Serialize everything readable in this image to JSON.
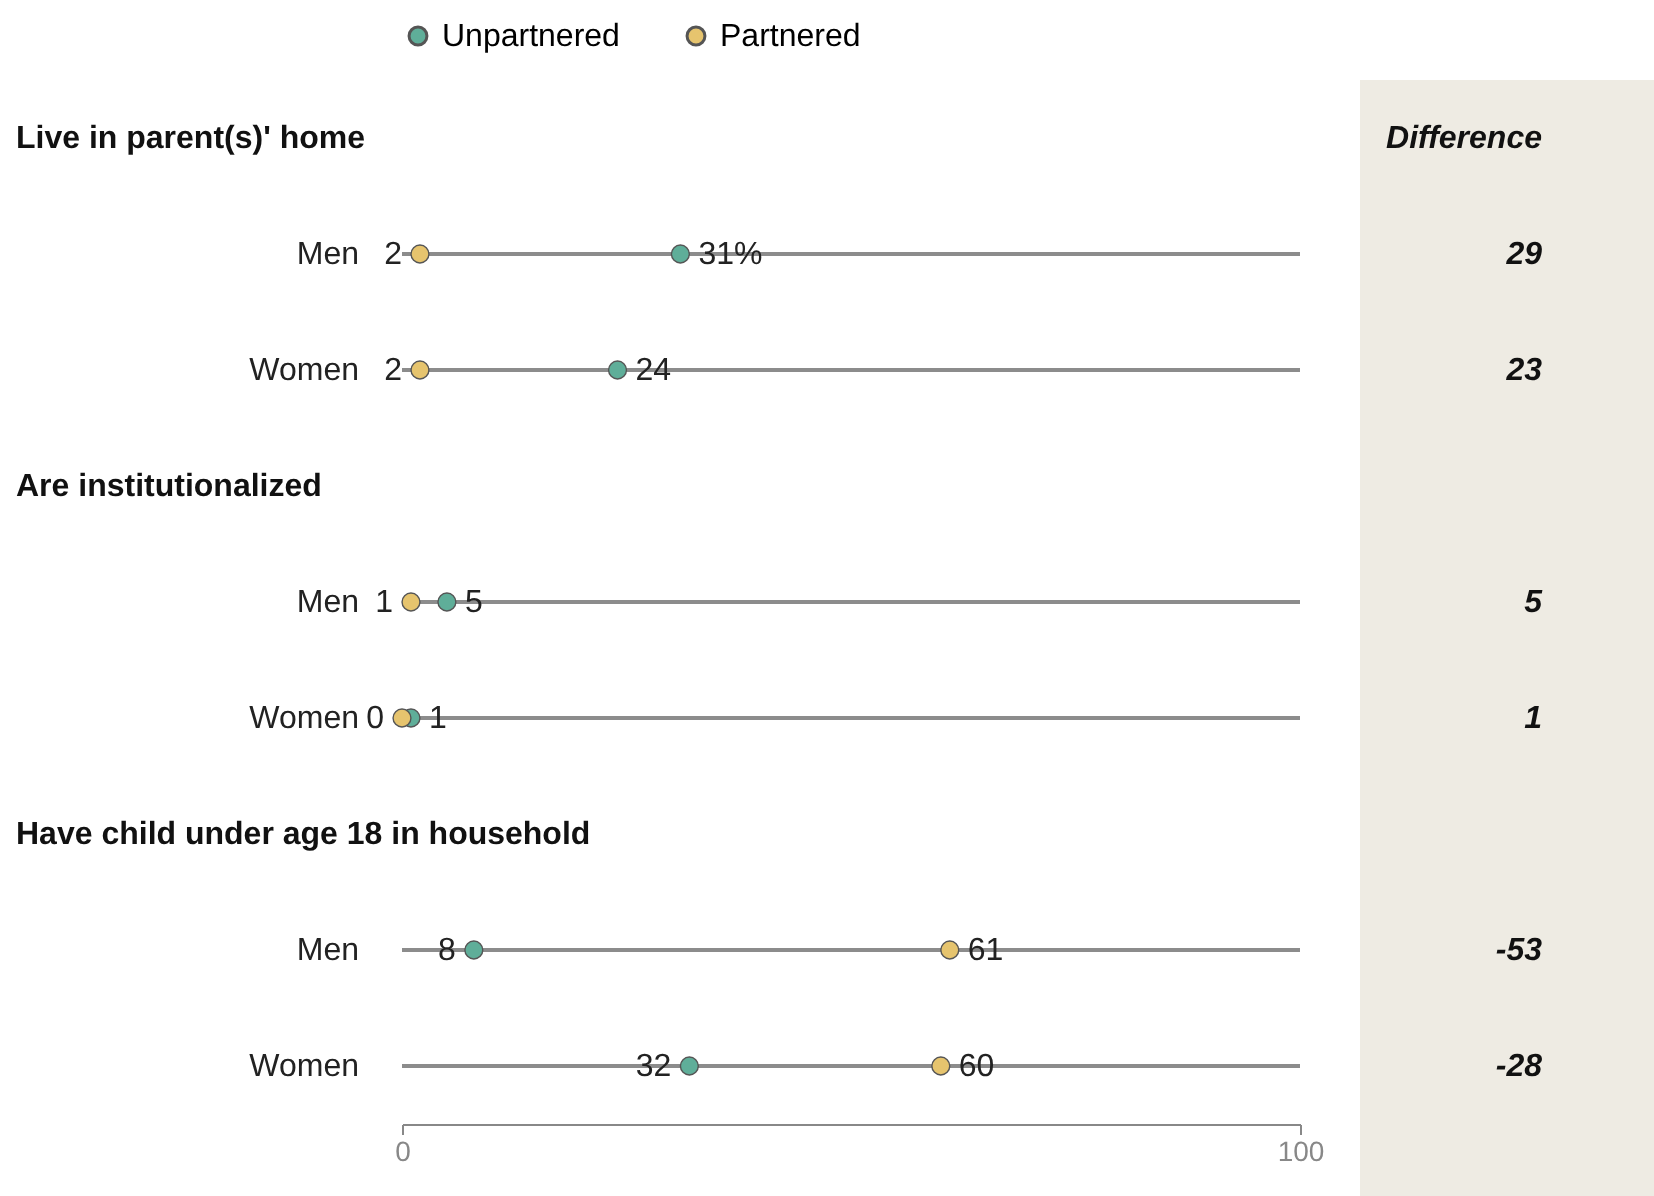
{
  "chart_data": {
    "type": "scatter",
    "orientation": "horizontal",
    "categories": [
      "Men",
      "Women",
      "Men",
      "Women",
      "Men",
      "Women"
    ],
    "series": [
      {
        "name": "Unpartnered",
        "color": "#5fae99",
        "values": [
          31,
          24,
          5,
          1,
          8,
          32
        ],
        "value_labels": [
          "31%",
          "24",
          "5",
          "1",
          "8",
          "32"
        ]
      },
      {
        "name": "Partnered",
        "color": "#e6c46e",
        "values": [
          2,
          2,
          1,
          0,
          61,
          60
        ],
        "value_labels": [
          "2",
          "2",
          "1",
          "0",
          "61",
          "60"
        ]
      }
    ],
    "xlim": [
      0,
      100
    ],
    "xticks": [
      0,
      100
    ],
    "grid": "y",
    "legend": "top",
    "marker": "circle",
    "annotations": [
      "Live in parent(s)' home",
      "Are institutionalized",
      "Have child under age 18 in household",
      "Difference",
      "29",
      "23",
      "5",
      "1",
      "-53",
      "-28"
    ]
  }
}
